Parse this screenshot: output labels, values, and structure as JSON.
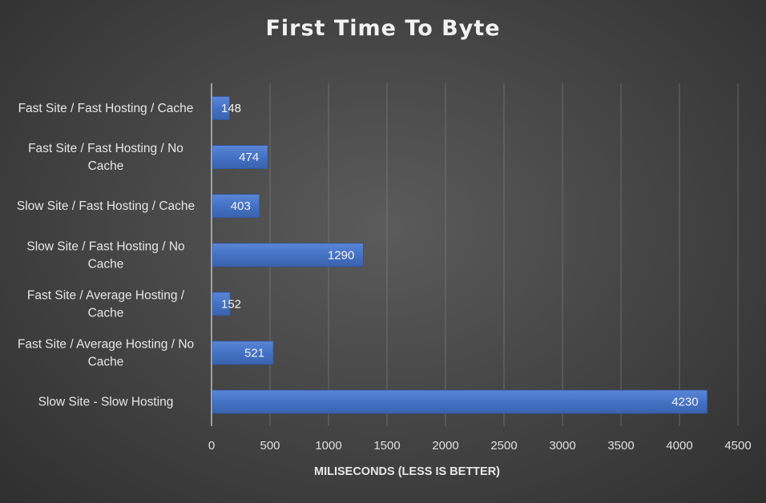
{
  "chart_data": {
    "type": "bar",
    "orientation": "horizontal",
    "title": "First Time To Byte",
    "xlabel": "MILISECONDS (LESS IS BETTER)",
    "ylabel": "",
    "categories": [
      [
        "Fast Site / Fast Hosting / Cache"
      ],
      [
        "Fast Site / Fast Hosting / No",
        "Cache"
      ],
      [
        "Slow Site / Fast Hosting / Cache"
      ],
      [
        "Slow Site / Fast Hosting / No",
        "Cache"
      ],
      [
        "Fast Site / Average Hosting /",
        "Cache"
      ],
      [
        "Fast Site / Average Hosting / No",
        "Cache"
      ],
      [
        "Slow Site - Slow Hosting"
      ]
    ],
    "values": [
      148,
      474,
      403,
      1290,
      152,
      521,
      4230
    ],
    "xlim": [
      0,
      4500
    ],
    "ticks": [
      0,
      500,
      1000,
      1500,
      2000,
      2500,
      3000,
      3500,
      4000,
      4500
    ],
    "grid": true,
    "legend": "none",
    "bar_color": "#4472c4"
  }
}
